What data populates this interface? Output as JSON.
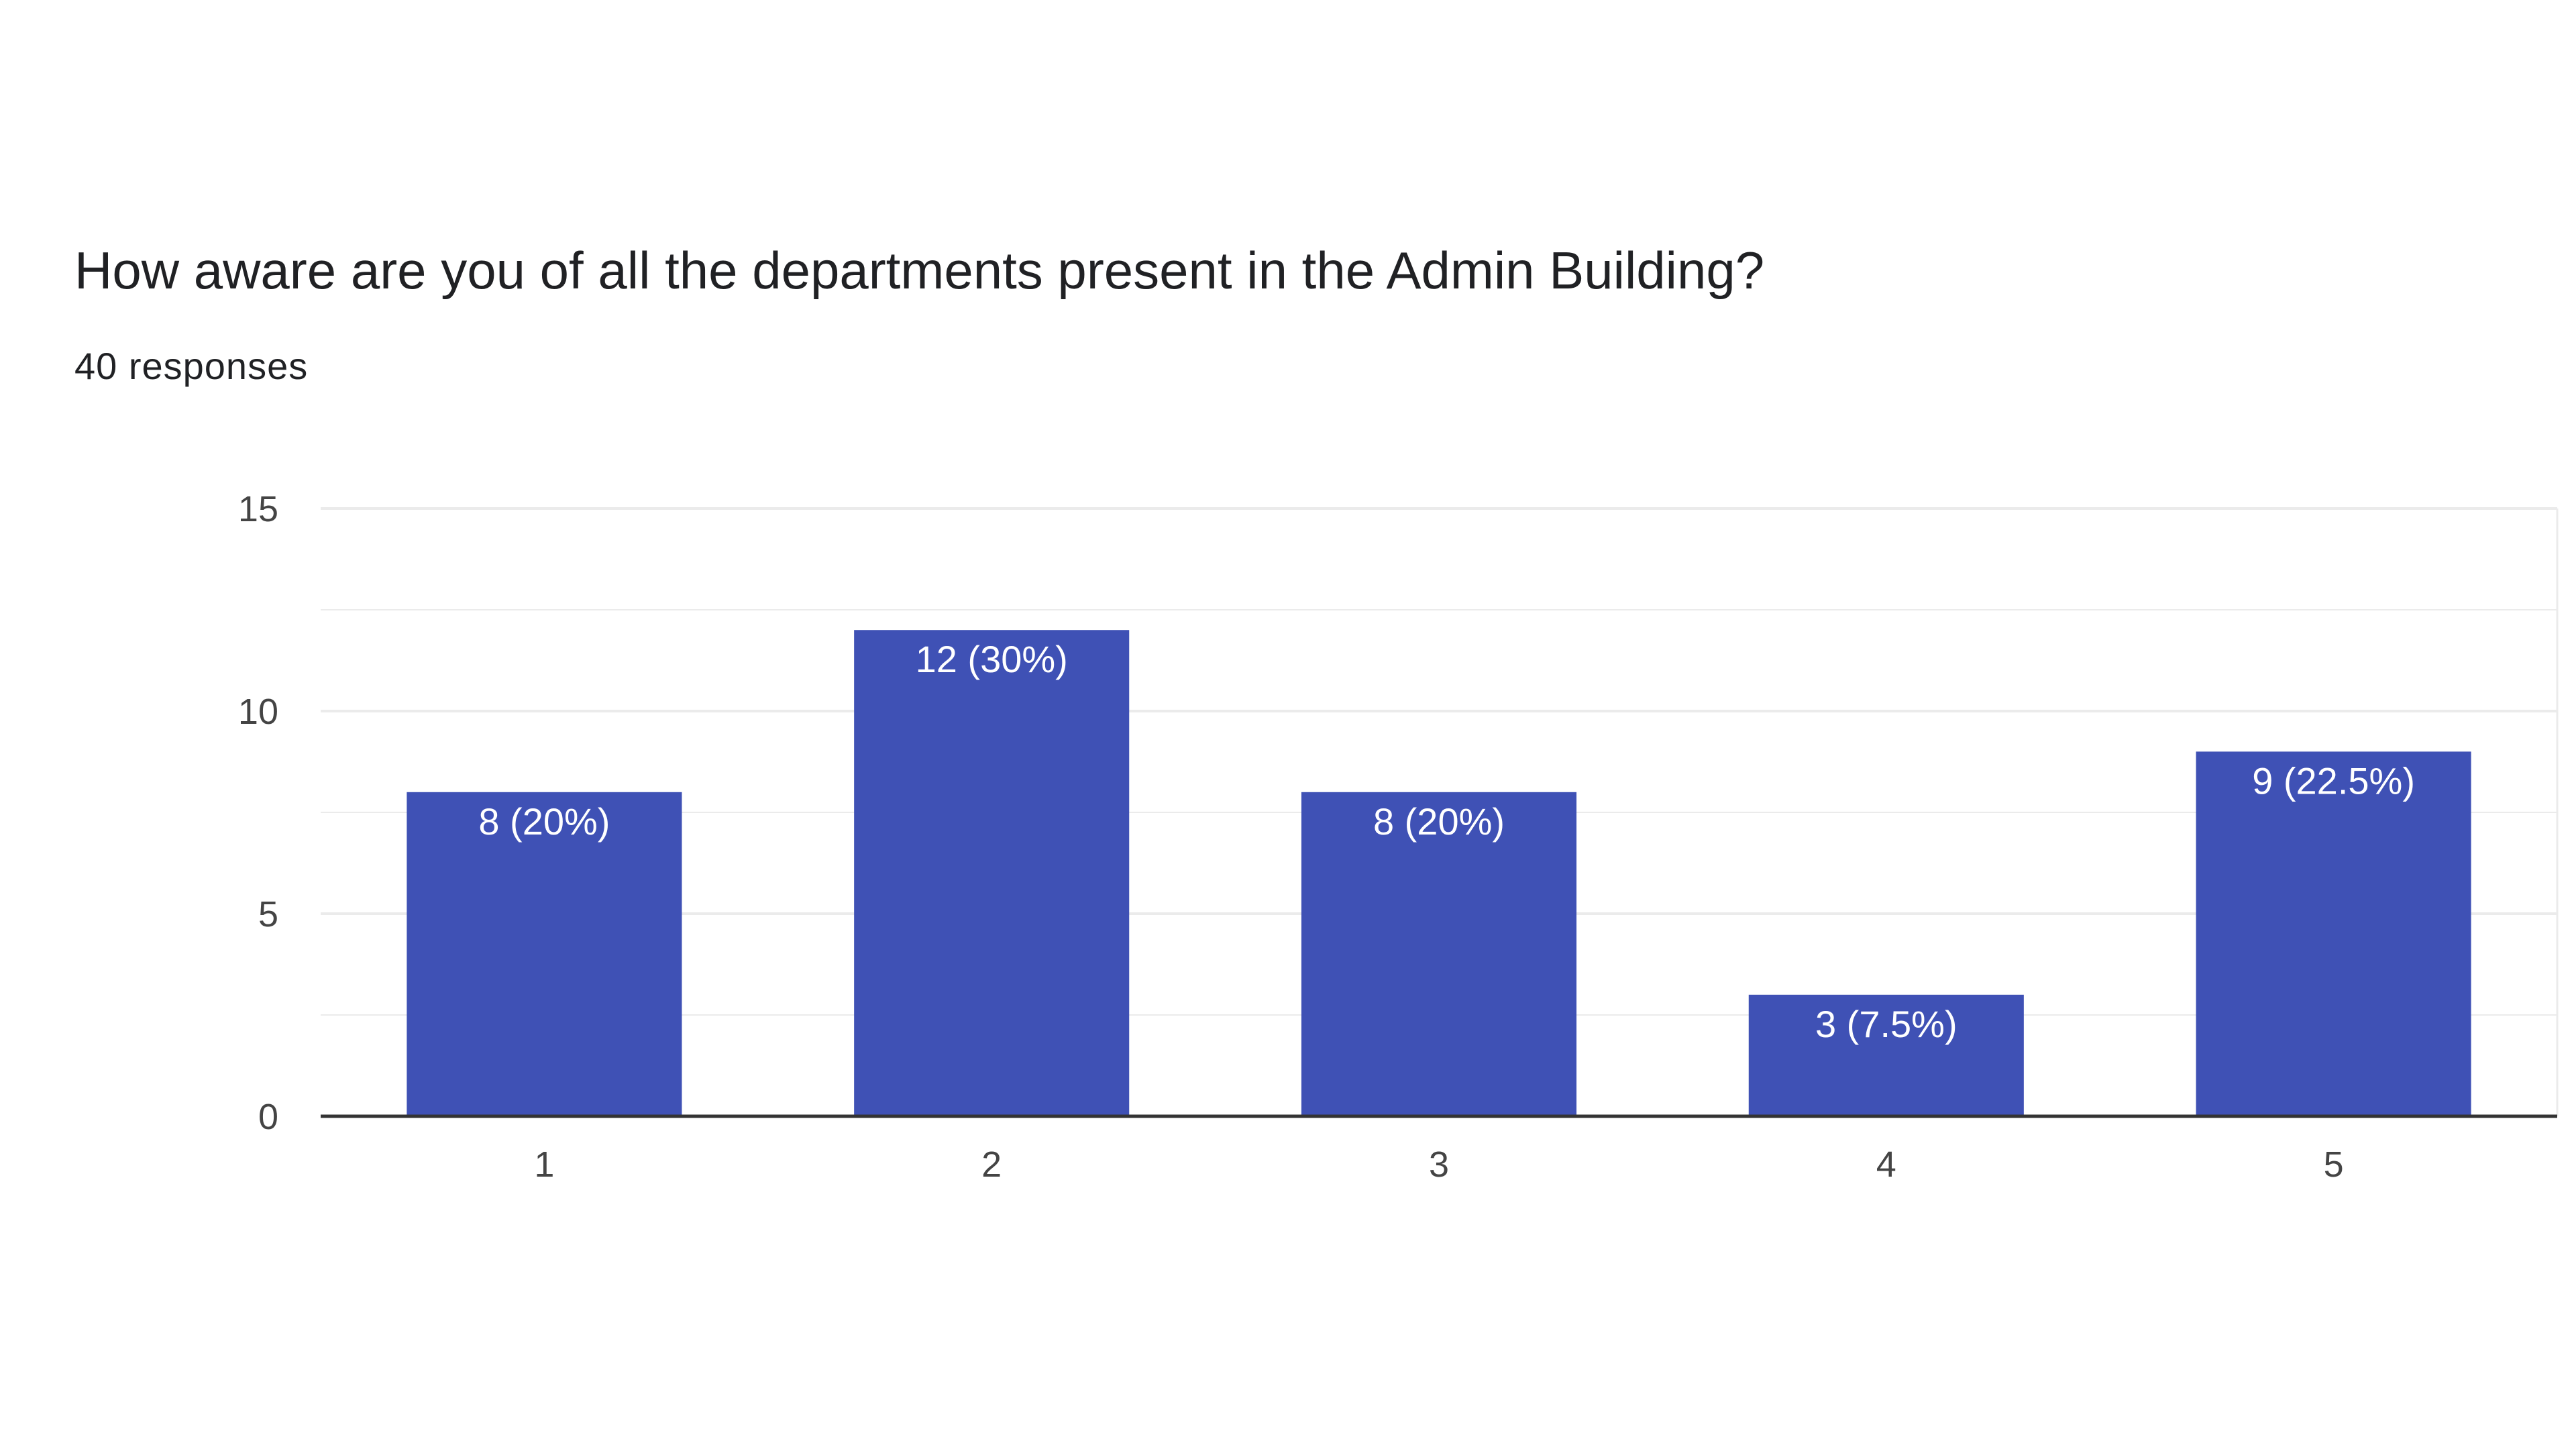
{
  "question": {
    "title": "How aware are you of all the departments present in the Admin Building?",
    "responses": "40 responses"
  },
  "colors": {
    "bar": "#3f51b5",
    "grid": "#ebebeb",
    "axis": "#333333",
    "bar_label": "#ffffff",
    "tick_text": "#444444"
  },
  "chart_data": {
    "type": "bar",
    "title": "How aware are you of all the departments present in the Admin Building?",
    "categories": [
      "1",
      "2",
      "3",
      "4",
      "5"
    ],
    "values": [
      8,
      12,
      8,
      3,
      9
    ],
    "data_labels": [
      "8 (20%)",
      "12 (30%)",
      "8 (20%)",
      "3 (7.5%)",
      "9 (22.5%)"
    ],
    "y_ticks": [
      0,
      5,
      10,
      15
    ],
    "ylim": [
      0,
      15
    ],
    "xlabel": "",
    "ylabel": "",
    "grid": true,
    "legend": "none"
  }
}
